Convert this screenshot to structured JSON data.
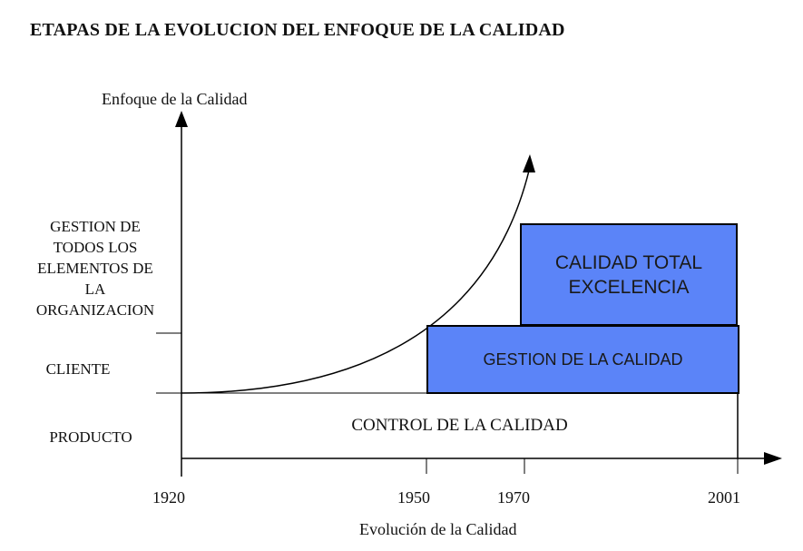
{
  "title": "ETAPAS DE LA EVOLUCION DEL ENFOQUE DE LA CALIDAD",
  "axes": {
    "y_label": "Enfoque de la Calidad",
    "x_label": "Evolución de la Calidad"
  },
  "levels": {
    "top": "GESTION DE\nTODOS LOS\nELEMENTOS DE\nLA\nORGANIZACION",
    "middle": "CLIENTE",
    "bottom": "PRODUCTO"
  },
  "years": [
    "1920",
    "1950",
    "1970",
    "2001"
  ],
  "stages": {
    "control": "CONTROL DE LA CALIDAD",
    "gestion": "GESTION DE LA CALIDAD",
    "total": "CALIDAD TOTAL\nEXCELENCIA"
  },
  "colors": {
    "stage_fill": "#5b84f8",
    "line": "#000000"
  }
}
